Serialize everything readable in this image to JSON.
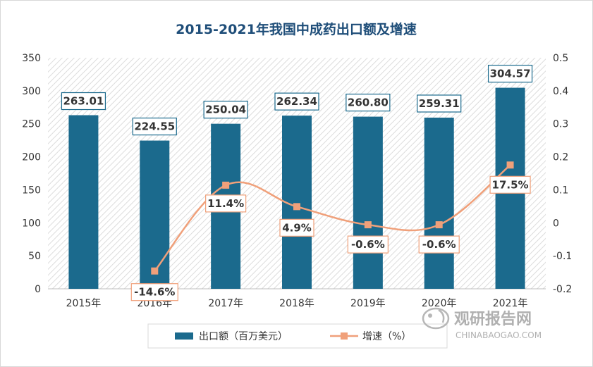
{
  "chart_data": {
    "type": "bar",
    "title": "2015-2021年我国中成药出口额及增速",
    "categories": [
      "2015年",
      "2016年",
      "2017年",
      "2018年",
      "2019年",
      "2020年",
      "2021年"
    ],
    "series": [
      {
        "name": "出口额（百万美元）",
        "type": "bar",
        "axis": "left",
        "values": [
          263.01,
          224.55,
          250.04,
          262.34,
          260.8,
          259.31,
          304.57
        ],
        "labels": [
          "263.01",
          "224.55",
          "250.04",
          "262.34",
          "260.80",
          "259.31",
          "304.57"
        ]
      },
      {
        "name": "增速（%）",
        "type": "line",
        "axis": "right",
        "values": [
          null,
          -0.146,
          0.114,
          0.049,
          -0.006,
          -0.006,
          0.175
        ],
        "labels": [
          "",
          "-14.6%",
          "11.4%",
          "4.9%",
          "-0.6%",
          "-0.6%",
          "17.5%"
        ]
      }
    ],
    "y_left": {
      "min": 0,
      "max": 350,
      "ticks": [
        "0",
        "50",
        "100",
        "150",
        "200",
        "250",
        "300",
        "350"
      ]
    },
    "y_right": {
      "min": -0.2,
      "max": 0.5,
      "ticks": [
        "-0.2",
        "-0.1",
        "0",
        "0.1",
        "0.2",
        "0.3",
        "0.4",
        "0.5"
      ]
    },
    "legend_position": "bottom",
    "colors": {
      "bar": "#1b6a8d",
      "line": "#f0a07a",
      "title": "#1f4e79"
    }
  },
  "watermark": {
    "brand": "观研报告网",
    "url": "CHINABAOGAO.COM"
  }
}
